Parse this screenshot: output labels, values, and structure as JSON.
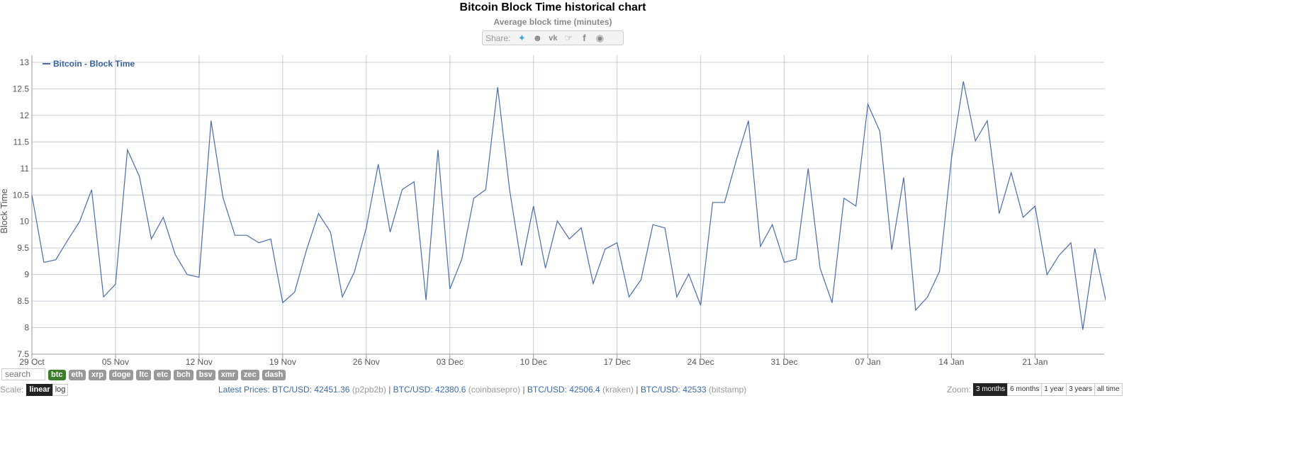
{
  "header": {
    "title": "Bitcoin Block Time historical chart",
    "subtitle": "Average block time (minutes)",
    "share_label": "Share:",
    "share_icons": [
      "twitter-icon",
      "reddit-icon",
      "vk-icon",
      "like-icon",
      "facebook-icon",
      "weibo-icon"
    ]
  },
  "chart_data": {
    "type": "line",
    "ylabel": "Block Time",
    "xlabel": "",
    "ylim": [
      7.5,
      13
    ],
    "y_ticks": [
      "7.5",
      "8",
      "8.5",
      "9",
      "9.5",
      "10",
      "10.5",
      "11",
      "11.5",
      "12",
      "12.5",
      "13"
    ],
    "x_ticks": [
      "29 Oct",
      "05 Nov",
      "12 Nov",
      "19 Nov",
      "26 Nov",
      "03 Dec",
      "10 Dec",
      "17 Dec",
      "24 Dec",
      "31 Dec",
      "07 Jan",
      "14 Jan",
      "21 Jan"
    ],
    "x_start": "29 Oct",
    "grid": true,
    "legend_position": "top-left",
    "series": [
      {
        "name": "Bitcoin - Block Time",
        "color": "#4a6ca8",
        "values": [
          10.5,
          9.23,
          9.28,
          9.65,
          10.0,
          10.6,
          8.58,
          8.82,
          11.35,
          10.85,
          9.67,
          10.08,
          9.38,
          9.0,
          8.95,
          11.9,
          10.45,
          9.74,
          9.74,
          9.6,
          9.67,
          8.47,
          8.67,
          9.47,
          10.15,
          9.8,
          8.58,
          9.05,
          9.88,
          11.08,
          9.8,
          10.6,
          10.75,
          8.52,
          11.35,
          8.73,
          9.29,
          10.44,
          10.6,
          12.53,
          10.6,
          9.17,
          10.29,
          9.12,
          10.01,
          9.67,
          9.88,
          8.83,
          9.48,
          9.6,
          8.58,
          8.9,
          9.94,
          9.88,
          8.58,
          9.01,
          8.42,
          10.36,
          10.36,
          11.17,
          11.9,
          9.53,
          9.94,
          9.23,
          9.29,
          11.0,
          9.12,
          8.47,
          10.44,
          10.29,
          12.21,
          11.7,
          9.47,
          10.83,
          8.33,
          8.58,
          9.06,
          11.19,
          12.64,
          11.52,
          11.9,
          10.15,
          10.92,
          10.08,
          10.29,
          9.0,
          9.36,
          9.6,
          7.96,
          9.49,
          8.43
        ]
      }
    ]
  },
  "controls": {
    "search_placeholder": "search",
    "coins": [
      {
        "label": "btc",
        "active": true
      },
      {
        "label": "eth",
        "active": false
      },
      {
        "label": "xrp",
        "active": false
      },
      {
        "label": "doge",
        "active": false
      },
      {
        "label": "ltc",
        "active": false
      },
      {
        "label": "etc",
        "active": false
      },
      {
        "label": "bch",
        "active": false
      },
      {
        "label": "bsv",
        "active": false
      },
      {
        "label": "xmr",
        "active": false
      },
      {
        "label": "zec",
        "active": false
      },
      {
        "label": "dash",
        "active": false
      }
    ],
    "scale_label": "Scale:",
    "scale_linear": "linear",
    "scale_log": "log",
    "latest_prices_label": "Latest Prices:",
    "prices": [
      {
        "pair": "BTC/USD:",
        "value": "42451.36",
        "source": "(p2pb2b)"
      },
      {
        "pair": "BTC/USD:",
        "value": "42380.6",
        "source": "(coinbasepro)"
      },
      {
        "pair": "BTC/USD:",
        "value": "42506.4",
        "source": "(kraken)"
      },
      {
        "pair": "BTC/USD:",
        "value": "42533",
        "source": "(bitstamp)"
      }
    ],
    "zoom_label": "Zoom:",
    "zoom_options": [
      {
        "label": "3 months",
        "active": true
      },
      {
        "label": "6 months",
        "active": false
      },
      {
        "label": "1 year",
        "active": false
      },
      {
        "label": "3 years",
        "active": false
      },
      {
        "label": "all time",
        "active": false
      }
    ]
  }
}
